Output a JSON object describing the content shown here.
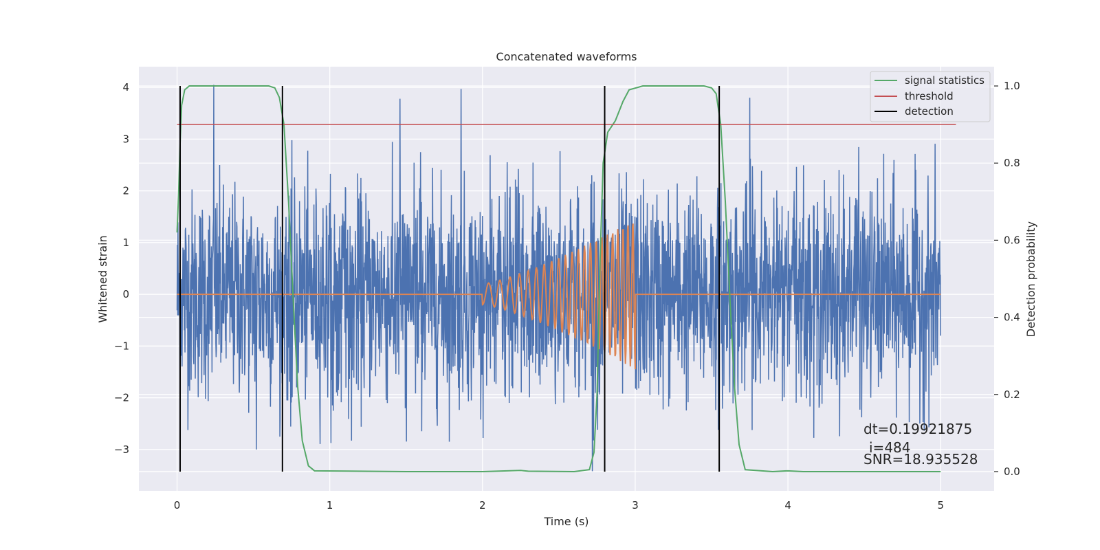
{
  "chart_data": {
    "type": "line",
    "title": "Concatenated waveforms",
    "xlabel": "Time (s)",
    "ylabel": "Whitened strain",
    "y2label": "Detection probability",
    "xlim": [
      -0.25,
      5.35
    ],
    "ylim": [
      -3.8,
      4.4
    ],
    "y2lim": [
      -0.05,
      1.05
    ],
    "xticks": [
      0,
      1,
      2,
      3,
      4,
      5
    ],
    "yticks": [
      -3,
      -2,
      -1,
      0,
      1,
      2,
      3,
      4
    ],
    "y2ticks": [
      0.0,
      0.2,
      0.4,
      0.6,
      0.8,
      1.0
    ],
    "grid": true,
    "legend_position": "upper right",
    "series": [
      {
        "name": "",
        "role": "whitened-noise",
        "color": "#4c72b0",
        "x_range": [
          0,
          5
        ],
        "amplitude_sigma": 1.0,
        "visible_peaks": [
          {
            "x": 0.24,
            "y": 4.05
          },
          {
            "x": 1.46,
            "y": 3.78
          },
          {
            "x": 1.86,
            "y": 3.97
          },
          {
            "x": 2.72,
            "y": -3.42
          },
          {
            "x": 3.75,
            "y": 3.8
          },
          {
            "x": 0.52,
            "y": -3.0
          }
        ]
      },
      {
        "name": "",
        "role": "injected-chirp",
        "color": "#dd8452",
        "x_range": [
          0,
          5
        ],
        "chirp_start": 2.0,
        "chirp_end": 3.0,
        "amplitude_start": 0.2,
        "amplitude_end": 1.45,
        "cycles": 22
      },
      {
        "name": "signal statistics",
        "color": "#55a868",
        "axis": "right",
        "points": [
          [
            0,
            0.62
          ],
          [
            0.01,
            0.72
          ],
          [
            0.02,
            0.85
          ],
          [
            0.03,
            0.95
          ],
          [
            0.05,
            0.99
          ],
          [
            0.08,
            1.0
          ],
          [
            0.6,
            1.0
          ],
          [
            0.64,
            0.995
          ],
          [
            0.67,
            0.97
          ],
          [
            0.7,
            0.9
          ],
          [
            0.73,
            0.7
          ],
          [
            0.76,
            0.45
          ],
          [
            0.79,
            0.22
          ],
          [
            0.82,
            0.08
          ],
          [
            0.86,
            0.015
          ],
          [
            0.9,
            0.002
          ],
          [
            1.5,
            0.0
          ],
          [
            2.0,
            0.0
          ],
          [
            2.25,
            0.003
          ],
          [
            2.3,
            0.001
          ],
          [
            2.6,
            0.0
          ],
          [
            2.7,
            0.005
          ],
          [
            2.73,
            0.05
          ],
          [
            2.75,
            0.2
          ],
          [
            2.77,
            0.55
          ],
          [
            2.79,
            0.8
          ],
          [
            2.82,
            0.88
          ],
          [
            2.87,
            0.91
          ],
          [
            2.92,
            0.96
          ],
          [
            2.96,
            0.99
          ],
          [
            3.05,
            1.0
          ],
          [
            3.45,
            1.0
          ],
          [
            3.5,
            0.995
          ],
          [
            3.53,
            0.98
          ],
          [
            3.56,
            0.9
          ],
          [
            3.59,
            0.7
          ],
          [
            3.62,
            0.45
          ],
          [
            3.65,
            0.22
          ],
          [
            3.68,
            0.07
          ],
          [
            3.72,
            0.005
          ],
          [
            3.9,
            0.0
          ],
          [
            4.0,
            0.002
          ],
          [
            4.1,
            0.0
          ],
          [
            5.0,
            0.0
          ]
        ]
      },
      {
        "name": "threshold",
        "color": "#c44e52",
        "axis": "right",
        "x": [
          0,
          5.1
        ],
        "value": 0.9
      },
      {
        "name": "detection",
        "color": "#000000",
        "axis": "right",
        "x_positions": [
          0.02,
          0.69,
          2.8,
          3.55
        ],
        "y_range": [
          0.0,
          1.0
        ]
      }
    ],
    "annotations": [
      {
        "text": "dt=0.19921875"
      },
      {
        "text": "i=484"
      },
      {
        "text": "SNR=18.935528"
      }
    ]
  }
}
